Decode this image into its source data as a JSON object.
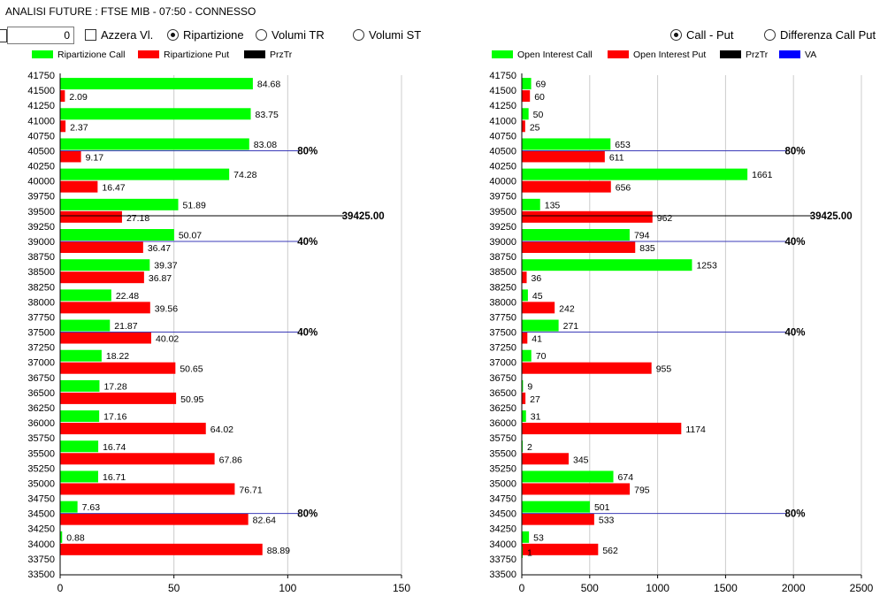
{
  "window": {
    "title": "ANALISI FUTURE : FTSE MIB - 07:50 - CONNESSO"
  },
  "toolbar": {
    "value_input": "0",
    "azzera_label": "Azzera Vl.",
    "azzera_checked": false,
    "left_modes": [
      {
        "label": "Ripartizione",
        "selected": true
      },
      {
        "label": "Volumi TR",
        "selected": false
      },
      {
        "label": "Volumi ST",
        "selected": false
      }
    ],
    "right_modes": [
      {
        "label": "Call - Put",
        "selected": true
      },
      {
        "label": "Differenza Call Put",
        "selected": false
      }
    ]
  },
  "colors": {
    "call": "#00ff00",
    "put": "#ff0000",
    "przTr": "#000000",
    "va": "#0000ff",
    "va_line": "#3b3bb8",
    "grid": "#cccccc"
  },
  "chart_data": [
    {
      "type": "bar",
      "orientation": "horizontal",
      "legend": [
        {
          "name": "Ripartizione Call",
          "color": "#00ff00"
        },
        {
          "name": "Ripartizione Put",
          "color": "#ff0000"
        },
        {
          "name": "PrzTr",
          "color": "#000000"
        }
      ],
      "legend_placement": "top",
      "y_ticks": [
        "41750",
        "41500",
        "41250",
        "41000",
        "40750",
        "40500",
        "40250",
        "40000",
        "39750",
        "39500",
        "39250",
        "39000",
        "38750",
        "38500",
        "38250",
        "38000",
        "37750",
        "37500",
        "37250",
        "37000",
        "36750",
        "36500",
        "36250",
        "36000",
        "35750",
        "35500",
        "35250",
        "35000",
        "34750",
        "34500",
        "34250",
        "34000",
        "33750",
        "33500"
      ],
      "categories": [
        "41500",
        "41000",
        "40500",
        "40000",
        "39500",
        "39000",
        "38500",
        "38000",
        "37500",
        "37000",
        "36500",
        "36000",
        "35500",
        "35000",
        "34500",
        "34000"
      ],
      "series": [
        {
          "name": "Ripartizione Call",
          "values": [
            "84.68",
            "83.75",
            "83.08",
            "74.28",
            "51.89",
            "50.07",
            "39.37",
            "22.48",
            "21.87",
            "18.22",
            "17.28",
            "17.16",
            "16.74",
            "16.71",
            "7.63",
            "0.88"
          ]
        },
        {
          "name": "Ripartizione Put",
          "values": [
            "2.09",
            "2.37",
            "9.17",
            "16.47",
            "27.18",
            "36.47",
            "36.87",
            "39.56",
            "40.02",
            "50.65",
            "50.95",
            "64.02",
            "67.86",
            "76.71",
            "82.64",
            "88.89"
          ]
        }
      ],
      "x_ticks": [
        "0",
        "50",
        "100",
        "150"
      ],
      "xlim": [
        0,
        150
      ],
      "grid": true,
      "reference_lines": [
        {
          "strike": 40500,
          "x": 105,
          "label": "80%",
          "kind": "va"
        },
        {
          "strike": 39000,
          "x": 105,
          "label": "40%",
          "kind": "va"
        },
        {
          "strike": 37500,
          "x": 105,
          "label": "40%",
          "kind": "va"
        },
        {
          "strike": 34500,
          "x": 105,
          "label": "80%",
          "kind": "va"
        },
        {
          "strike": 39425,
          "x": 125,
          "label": "39425.00",
          "kind": "przTr"
        }
      ]
    },
    {
      "type": "bar",
      "orientation": "horizontal",
      "legend": [
        {
          "name": "Open Interest Call",
          "color": "#00ff00"
        },
        {
          "name": "Open Interest Put",
          "color": "#ff0000"
        },
        {
          "name": "PrzTr",
          "color": "#000000"
        },
        {
          "name": "VA",
          "color": "#0000ff"
        }
      ],
      "legend_placement": "top",
      "y_ticks": [
        "41750",
        "41500",
        "41250",
        "41000",
        "40750",
        "40500",
        "40250",
        "40000",
        "39750",
        "39500",
        "39250",
        "39000",
        "38750",
        "38500",
        "38250",
        "38000",
        "37750",
        "37500",
        "37250",
        "37000",
        "36750",
        "36500",
        "36250",
        "36000",
        "35750",
        "35500",
        "35250",
        "35000",
        "34750",
        "34500",
        "34250",
        "34000",
        "33750",
        "33500"
      ],
      "categories": [
        "41500",
        "41000",
        "40500",
        "40000",
        "39500",
        "39000",
        "38500",
        "38000",
        "37500",
        "37000",
        "36500",
        "36000",
        "35500",
        "35000",
        "34500",
        "34000",
        "33750"
      ],
      "series": [
        {
          "name": "Open Interest Call",
          "values": [
            "69",
            "50",
            "653",
            "1661",
            "135",
            "794",
            "1253",
            "45",
            "271",
            "70",
            "9",
            "31",
            "2",
            "674",
            "501",
            "53",
            "1"
          ]
        },
        {
          "name": "Open Interest Put",
          "values": [
            "60",
            "25",
            "611",
            "656",
            "962",
            "835",
            "36",
            "242",
            "41",
            "955",
            "27",
            "1174",
            "345",
            "795",
            "533",
            "562",
            ""
          ]
        }
      ],
      "x_ticks": [
        "0",
        "500",
        "1000",
        "1500",
        "2000",
        "2500"
      ],
      "xlim": [
        0,
        2500
      ],
      "grid": true,
      "reference_lines": [
        {
          "strike": 40500,
          "x": 1950,
          "label": "80%",
          "kind": "va"
        },
        {
          "strike": 39000,
          "x": 1950,
          "label": "40%",
          "kind": "va"
        },
        {
          "strike": 37500,
          "x": 1950,
          "label": "40%",
          "kind": "va"
        },
        {
          "strike": 34500,
          "x": 1950,
          "label": "80%",
          "kind": "va"
        },
        {
          "strike": 39425,
          "x": 2140,
          "label": "39425.00",
          "kind": "przTr"
        }
      ]
    }
  ]
}
